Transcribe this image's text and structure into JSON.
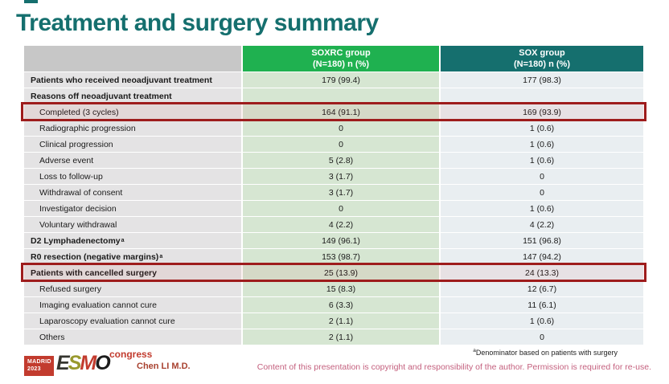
{
  "slide": {
    "title": "Treatment and surgery summary"
  },
  "table": {
    "columns": [
      {
        "group": "",
        "sub": ""
      },
      {
        "group": "SOXRC group",
        "sub": "(N=180)  n (%)",
        "color": "#1fb150"
      },
      {
        "group": "SOX group",
        "sub": "(N=180)  n (%)",
        "color": "#156f6e"
      }
    ],
    "rows": [
      {
        "label": "Patients who received neoadjuvant treatment",
        "bold": true,
        "indent": false,
        "highlight": false,
        "soxrc": "179 (99.4)",
        "sox": "177 (98.3)"
      },
      {
        "label": "Reasons off neoadjuvant treatment",
        "bold": true,
        "indent": false,
        "highlight": false,
        "soxrc": "",
        "sox": ""
      },
      {
        "label": "Completed (3 cycles)",
        "bold": false,
        "indent": true,
        "highlight": true,
        "soxrc": "164 (91.1)",
        "sox": "169 (93.9)"
      },
      {
        "label": "Radiographic progression",
        "bold": false,
        "indent": true,
        "highlight": false,
        "soxrc": "0",
        "sox": "1 (0.6)"
      },
      {
        "label": "Clinical progression",
        "bold": false,
        "indent": true,
        "highlight": false,
        "soxrc": "0",
        "sox": "1 (0.6)"
      },
      {
        "label": "Adverse event",
        "bold": false,
        "indent": true,
        "highlight": false,
        "soxrc": "5 (2.8)",
        "sox": "1 (0.6)"
      },
      {
        "label": "Loss to follow-up",
        "bold": false,
        "indent": true,
        "highlight": false,
        "soxrc": "3 (1.7)",
        "sox": "0"
      },
      {
        "label": "Withdrawal of consent",
        "bold": false,
        "indent": true,
        "highlight": false,
        "soxrc": "3 (1.7)",
        "sox": "0"
      },
      {
        "label": "Investigator decision",
        "bold": false,
        "indent": true,
        "highlight": false,
        "soxrc": "0",
        "sox": "1 (0.6)"
      },
      {
        "label": "Voluntary withdrawal",
        "bold": false,
        "indent": true,
        "highlight": false,
        "soxrc": "4 (2.2)",
        "sox": "4 (2.2)"
      },
      {
        "label": "D2 Lymphadenectomy",
        "sup": "a",
        "bold": true,
        "indent": false,
        "highlight": false,
        "soxrc": "149 (96.1)",
        "sox": "151 (96.8)"
      },
      {
        "label": "R0 resection (negative margins)",
        "sup": "a",
        "bold": true,
        "indent": false,
        "highlight": false,
        "soxrc": "153 (98.7)",
        "sox": "147 (94.2)"
      },
      {
        "label": "Patients with cancelled surgery",
        "bold": true,
        "indent": false,
        "highlight": true,
        "soxrc": "25 (13.9)",
        "sox": "24 (13.3)"
      },
      {
        "label": "Refused surgery",
        "bold": false,
        "indent": true,
        "highlight": false,
        "soxrc": "15 (8.3)",
        "sox": "12 (6.7)"
      },
      {
        "label": "Imaging evaluation cannot cure",
        "bold": false,
        "indent": true,
        "highlight": false,
        "soxrc": "6 (3.3)",
        "sox": "11 (6.1)"
      },
      {
        "label": "Laparoscopy evaluation cannot cure",
        "bold": false,
        "indent": true,
        "highlight": false,
        "soxrc": "2 (1.1)",
        "sox": "1 (0.6)"
      },
      {
        "label": "Others",
        "bold": false,
        "indent": true,
        "highlight": false,
        "soxrc": "2 (1.1)",
        "sox": "0"
      }
    ],
    "highlight_color": "#9e1c1c"
  },
  "footer": {
    "footnote_sup": "a",
    "footnote": "Denominator based on patients with surgery",
    "author": "Chen LI M.D.",
    "copyright": "Content of this presentation is copyright and responsibility of the author. Permission is required for re-use.",
    "logo": {
      "city": "MADRID",
      "year": "2023",
      "org_letters": [
        {
          "ch": "E",
          "color": "#35352f"
        },
        {
          "ch": "S",
          "color": "#99992e"
        },
        {
          "ch": "M",
          "color": "#c23b2e"
        },
        {
          "ch": "O",
          "color": "#1c1c1c"
        }
      ],
      "suffix": "congress"
    }
  }
}
